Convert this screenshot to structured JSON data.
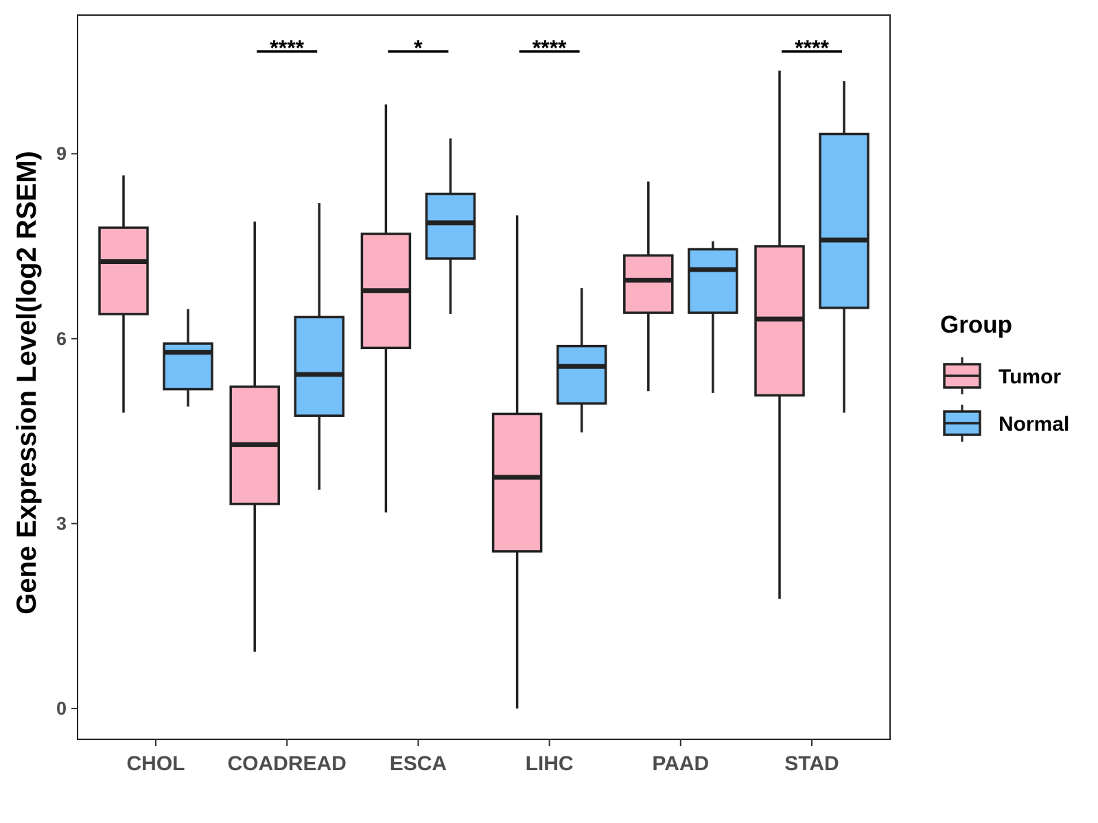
{
  "chart_data": {
    "type": "boxplot",
    "title": "",
    "xlabel": "",
    "ylabel": "Gene Expression Level(log2 RSEM)",
    "ylim": [
      -0.5,
      11.25
    ],
    "yticks": [
      0,
      3,
      6,
      9
    ],
    "yticks_labels": [
      "0",
      "3",
      "6",
      "9"
    ],
    "categories": [
      "CHOL",
      "COADREAD",
      "ESCA",
      "LIHC",
      "PAAD",
      "STAD"
    ],
    "legend": {
      "title": "Group",
      "position": "right",
      "entries": [
        {
          "name": "Tumor",
          "color": "#FBB1C2"
        },
        {
          "name": "Normal",
          "color": "#75C0F8"
        }
      ]
    },
    "series": [
      {
        "name": "Tumor",
        "color": "#FBB1C2",
        "boxes": [
          {
            "min": 4.8,
            "q1": 6.4,
            "median": 7.25,
            "q3": 7.8,
            "max": 8.65
          },
          {
            "min": 0.92,
            "q1": 3.32,
            "median": 4.28,
            "q3": 5.22,
            "max": 7.9
          },
          {
            "min": 3.18,
            "q1": 5.85,
            "median": 6.78,
            "q3": 7.7,
            "max": 9.8
          },
          {
            "min": 0.0,
            "q1": 2.55,
            "median": 3.75,
            "q3": 4.78,
            "max": 8.0
          },
          {
            "min": 5.15,
            "q1": 6.42,
            "median": 6.95,
            "q3": 7.35,
            "max": 8.55
          },
          {
            "min": 1.78,
            "q1": 5.08,
            "median": 6.32,
            "q3": 7.5,
            "max": 10.35
          }
        ]
      },
      {
        "name": "Normal",
        "color": "#75C0F8",
        "boxes": [
          {
            "min": 4.9,
            "q1": 5.18,
            "median": 5.78,
            "q3": 5.92,
            "max": 6.48
          },
          {
            "min": 3.55,
            "q1": 4.75,
            "median": 5.42,
            "q3": 6.35,
            "max": 8.2
          },
          {
            "min": 6.4,
            "q1": 7.3,
            "median": 7.88,
            "q3": 8.35,
            "max": 9.25
          },
          {
            "min": 4.48,
            "q1": 4.95,
            "median": 5.55,
            "q3": 5.88,
            "max": 6.82
          },
          {
            "min": 5.12,
            "q1": 6.42,
            "median": 7.12,
            "q3": 7.45,
            "max": 7.58
          },
          {
            "min": 4.8,
            "q1": 6.5,
            "median": 7.6,
            "q3": 9.32,
            "max": 10.18
          }
        ]
      }
    ],
    "significance": [
      {
        "category": "CHOL",
        "label": ""
      },
      {
        "category": "COADREAD",
        "label": "****"
      },
      {
        "category": "ESCA",
        "label": "*"
      },
      {
        "category": "LIHC",
        "label": "****"
      },
      {
        "category": "PAAD",
        "label": ""
      },
      {
        "category": "STAD",
        "label": "****"
      }
    ]
  }
}
